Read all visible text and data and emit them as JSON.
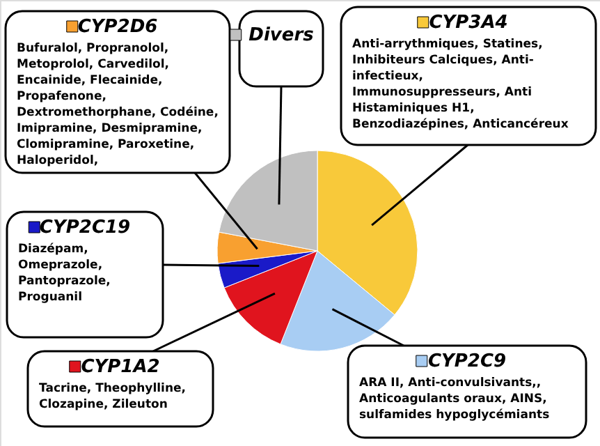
{
  "chart_data": {
    "type": "pie",
    "categories": [
      "CYP3A4",
      "CYP2C9",
      "CYP1A2",
      "CYP2C19",
      "CYP2D6",
      "Divers"
    ],
    "values": [
      36,
      20,
      13,
      4,
      5,
      22
    ],
    "legend": "top",
    "colors": [
      "#f8c93a",
      "#a8cdf3",
      "#e0141e",
      "#1a1ac8",
      "#f8a030",
      "#c0c0c0"
    ],
    "annotations": [
      "Anti-arrythmiques, Statines,\nInhibiteurs Calciques, Anti-\ninfectieux,\nImmunosuppresseurs, Anti\nHistaminiques H1,\nBenzodiazépines, Anticancéreux",
      "ARA II, Anti-convulsivants,,\nAnticoagulants oraux, AINS,\nsulfamides hypoglycémiants",
      "Tacrine, Theophylline,\nClozapine, Zileuton",
      "Diazépam,\nOmeprazole,\nPantoprazole,\nProguanil",
      "Bufuralol, Propranolol,\nMetoprolol, Carvedilol,\nEncainide, Flecainide,\nPropafenone,\nDextromethorphane, Codéine,\nImipramine, Desmipramine,\nClomipramine, Paroxetine,\nHaloperidol,"
    ]
  }
}
